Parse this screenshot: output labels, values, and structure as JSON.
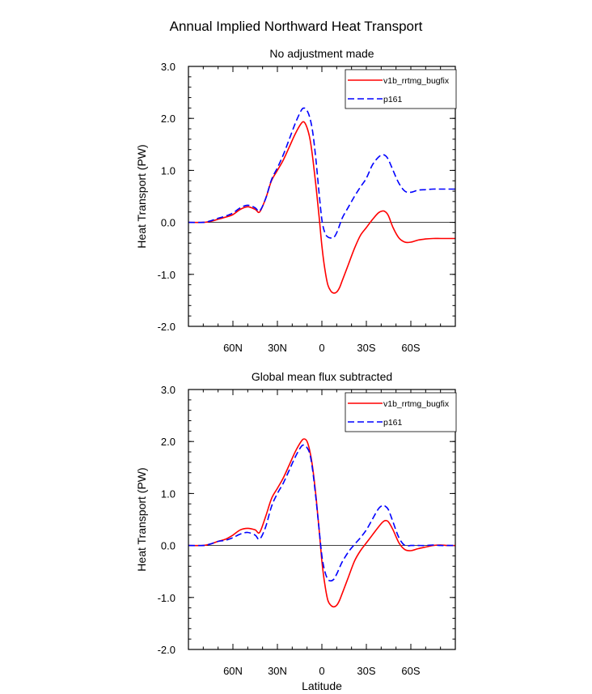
{
  "figure_title": "Annual Implied Northward Heat Transport",
  "chart_data": [
    {
      "type": "line",
      "title": "No adjustment made",
      "xlabel": "",
      "ylabel": "Heat Transport (PW)",
      "xlim": [
        -90,
        90
      ],
      "ylim": [
        -2.0,
        3.0
      ],
      "yticks": [
        3.0,
        2.0,
        1.0,
        0.0,
        -1.0,
        -2.0
      ],
      "ytick_labels": [
        "3.0",
        "2.0",
        "1.0",
        "0.0",
        "-1.0",
        "-2.0"
      ],
      "xticks": [
        -60,
        -30,
        0,
        30,
        60
      ],
      "xtick_labels": [
        "60N",
        "30N",
        "0",
        "30S",
        "60S"
      ],
      "legend": "top-right",
      "series": [
        {
          "name": "v1b_rrtmg_bugfix",
          "color": "#ff0000",
          "dash": "solid",
          "x": [
            -90,
            -80,
            -75,
            -70,
            -65,
            -60,
            -55,
            -50,
            -45,
            -42,
            -38,
            -34,
            -30,
            -26,
            -22,
            -18,
            -14,
            -12,
            -10,
            -8,
            -6,
            -4,
            -2,
            0,
            2,
            4,
            6,
            8,
            10,
            12,
            14,
            18,
            22,
            26,
            30,
            34,
            38,
            41,
            43,
            45,
            48,
            52,
            56,
            60,
            65,
            70,
            75,
            80,
            85,
            90
          ],
          "y": [
            0.0,
            0.0,
            0.02,
            0.06,
            0.1,
            0.15,
            0.25,
            0.3,
            0.25,
            0.2,
            0.45,
            0.8,
            1.0,
            1.2,
            1.45,
            1.7,
            1.9,
            1.93,
            1.82,
            1.6,
            1.2,
            0.7,
            0.15,
            -0.45,
            -0.9,
            -1.2,
            -1.32,
            -1.36,
            -1.34,
            -1.25,
            -1.1,
            -0.8,
            -0.5,
            -0.25,
            -0.1,
            0.05,
            0.18,
            0.22,
            0.2,
            0.12,
            -0.1,
            -0.3,
            -0.38,
            -0.38,
            -0.34,
            -0.32,
            -0.31,
            -0.31,
            -0.31,
            -0.31
          ]
        },
        {
          "name": "p161",
          "color": "#0000ff",
          "dash": "dashed",
          "x": [
            -90,
            -80,
            -75,
            -70,
            -65,
            -60,
            -55,
            -50,
            -45,
            -42,
            -38,
            -34,
            -30,
            -26,
            -22,
            -18,
            -14,
            -12,
            -10,
            -8,
            -6,
            -4,
            -2,
            0,
            2,
            4,
            6,
            8,
            10,
            12,
            14,
            18,
            22,
            26,
            30,
            34,
            38,
            41,
            43,
            45,
            48,
            52,
            56,
            60,
            65,
            70,
            75,
            80,
            85,
            90
          ],
          "y": [
            0.0,
            0.0,
            0.03,
            0.08,
            0.12,
            0.18,
            0.28,
            0.33,
            0.28,
            0.22,
            0.45,
            0.82,
            1.05,
            1.3,
            1.6,
            1.9,
            2.15,
            2.2,
            2.15,
            2.0,
            1.7,
            1.2,
            0.6,
            0.05,
            -0.2,
            -0.28,
            -0.3,
            -0.29,
            -0.2,
            -0.05,
            0.1,
            0.3,
            0.5,
            0.68,
            0.85,
            1.1,
            1.25,
            1.3,
            1.28,
            1.2,
            1.0,
            0.75,
            0.6,
            0.58,
            0.62,
            0.63,
            0.64,
            0.64,
            0.64,
            0.64
          ]
        }
      ]
    },
    {
      "type": "line",
      "title": "Global mean flux subtracted",
      "xlabel": "Latitude",
      "ylabel": "Heat Transport (PW)",
      "xlim": [
        -90,
        90
      ],
      "ylim": [
        -2.0,
        3.0
      ],
      "yticks": [
        3.0,
        2.0,
        1.0,
        0.0,
        -1.0,
        -2.0
      ],
      "ytick_labels": [
        "3.0",
        "2.0",
        "1.0",
        "0.0",
        "-1.0",
        "-2.0"
      ],
      "xticks": [
        -60,
        -30,
        0,
        30,
        60
      ],
      "xtick_labels": [
        "60N",
        "30N",
        "0",
        "30S",
        "60S"
      ],
      "legend": "top-right",
      "series": [
        {
          "name": "v1b_rrtmg_bugfix",
          "color": "#ff0000",
          "dash": "solid",
          "x": [
            -90,
            -80,
            -75,
            -70,
            -65,
            -60,
            -55,
            -50,
            -45,
            -42,
            -38,
            -34,
            -30,
            -26,
            -22,
            -18,
            -14,
            -12,
            -10,
            -8,
            -6,
            -4,
            -2,
            0,
            2,
            4,
            6,
            8,
            10,
            12,
            14,
            18,
            22,
            26,
            30,
            34,
            38,
            41,
            43,
            45,
            48,
            52,
            56,
            60,
            65,
            70,
            75,
            80,
            85,
            90
          ],
          "y": [
            0.0,
            0.0,
            0.03,
            0.08,
            0.12,
            0.2,
            0.3,
            0.33,
            0.3,
            0.25,
            0.55,
            0.9,
            1.1,
            1.3,
            1.55,
            1.8,
            2.0,
            2.05,
            2.0,
            1.8,
            1.45,
            0.95,
            0.35,
            -0.3,
            -0.75,
            -1.05,
            -1.15,
            -1.18,
            -1.15,
            -1.05,
            -0.9,
            -0.6,
            -0.3,
            -0.1,
            0.05,
            0.2,
            0.35,
            0.45,
            0.48,
            0.45,
            0.3,
            0.05,
            -0.08,
            -0.1,
            -0.06,
            -0.03,
            0.0,
            0.01,
            0.0,
            0.0
          ]
        },
        {
          "name": "p161",
          "color": "#0000ff",
          "dash": "dashed",
          "x": [
            -90,
            -80,
            -75,
            -70,
            -65,
            -60,
            -55,
            -50,
            -45,
            -42,
            -38,
            -34,
            -30,
            -26,
            -22,
            -18,
            -14,
            -12,
            -10,
            -8,
            -6,
            -4,
            -2,
            0,
            2,
            4,
            6,
            8,
            10,
            12,
            14,
            18,
            22,
            26,
            30,
            34,
            38,
            41,
            43,
            45,
            48,
            52,
            56,
            60,
            65,
            70,
            75,
            80,
            85,
            90
          ],
          "y": [
            0.0,
            0.0,
            0.03,
            0.08,
            0.1,
            0.15,
            0.22,
            0.25,
            0.2,
            0.12,
            0.35,
            0.75,
            1.0,
            1.2,
            1.45,
            1.7,
            1.9,
            1.93,
            1.88,
            1.75,
            1.4,
            0.9,
            0.35,
            -0.2,
            -0.5,
            -0.65,
            -0.68,
            -0.65,
            -0.55,
            -0.42,
            -0.3,
            -0.12,
            0.02,
            0.15,
            0.3,
            0.5,
            0.7,
            0.77,
            0.75,
            0.68,
            0.45,
            0.15,
            0.0,
            0.0,
            0.0,
            0.0,
            0.01,
            0.0,
            0.0,
            0.0
          ]
        }
      ]
    }
  ]
}
